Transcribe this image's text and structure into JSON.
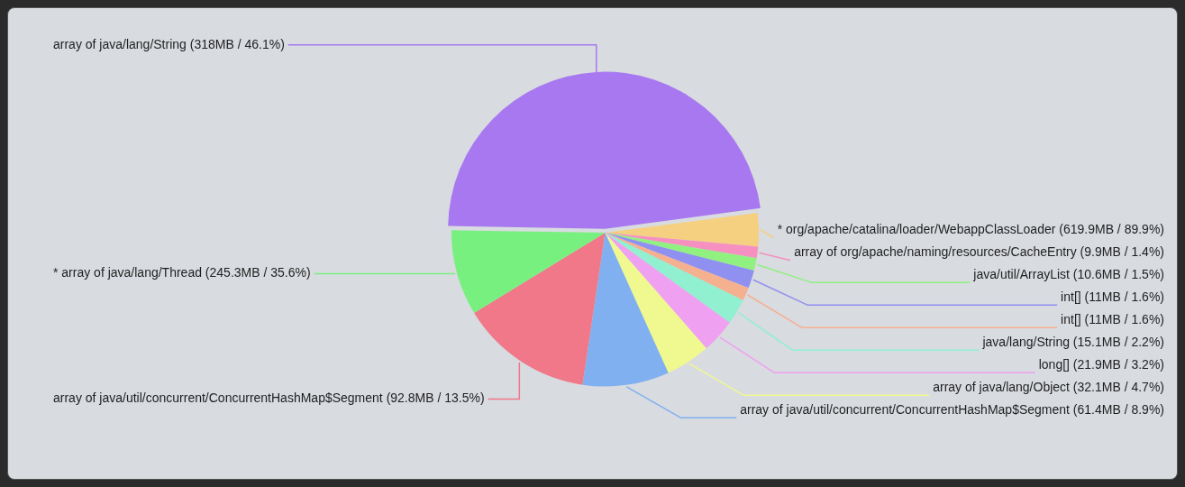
{
  "chart_data": {
    "type": "pie",
    "categories": [
      "array of java/lang/String (318MB / 46.1%)",
      "* org/apache/catalina/loader/WebappClassLoader (619.9MB / 89.9%)",
      "array of org/apache/naming/resources/CacheEntry (9.9MB / 1.4%)",
      "java/util/ArrayList (10.6MB / 1.5%)",
      "int[] (11MB / 1.6%)",
      "int[] (11MB / 1.6%)",
      "java/lang/String (15.1MB / 2.2%)",
      "long[] (21.9MB / 3.2%)",
      "array of java/lang/Object (32.1MB / 4.7%)",
      "array of java/util/concurrent/ConcurrentHashMap$Segment (61.4MB / 8.9%)",
      "array of java/util/concurrent/ConcurrentHashMap$Segment (92.8MB / 13.5%)",
      "* array of java/lang/Thread (245.3MB / 35.6%)"
    ],
    "values": [
      47.7,
      3.5,
      1.2,
      1.3,
      1.9,
      1.4,
      2.7,
      3.6,
      4.7,
      9.1,
      13.9,
      9.0
    ],
    "colors": [
      "#a878f0",
      "#f5d080",
      "#f590c0",
      "#90f080",
      "#9090f0",
      "#f5b090",
      "#90f0d0",
      "#f0a0f0",
      "#f0f890",
      "#80b0f0",
      "#f07888",
      "#78f080"
    ]
  }
}
